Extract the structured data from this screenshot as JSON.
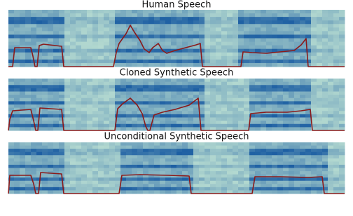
{
  "panels": [
    {
      "title": "Human Speech"
    },
    {
      "title": "Cloned Synthetic Speech"
    },
    {
      "title": "Unconditional Synthetic Speech"
    }
  ]
}
